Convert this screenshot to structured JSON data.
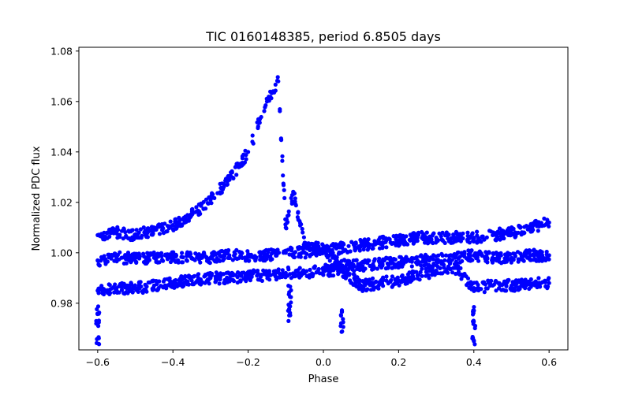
{
  "chart_data": {
    "type": "scatter",
    "title": "TIC 0160148385, period 6.8505 days",
    "xlabel": "Phase",
    "ylabel": "Normalized PDC flux",
    "xlim": [
      -0.65,
      0.65
    ],
    "ylim": [
      0.9615,
      1.0815
    ],
    "xticks": [
      -0.6,
      -0.4,
      -0.2,
      0.0,
      0.2,
      0.4,
      0.6
    ],
    "xtick_labels": [
      "−0.6",
      "−0.4",
      "−0.2",
      "0.0",
      "0.2",
      "0.4",
      "0.6"
    ],
    "yticks": [
      0.98,
      1.0,
      1.02,
      1.04,
      1.06,
      1.08
    ],
    "ytick_labels": [
      "0.98",
      "1.00",
      "1.02",
      "1.04",
      "1.06",
      "1.08"
    ],
    "grid": false,
    "marker_color": "#0000ff",
    "series": [
      {
        "name": "upper-band",
        "description": "bright branch rising to flare peak then dropping",
        "x": [
          -0.6,
          -0.55,
          -0.5,
          -0.45,
          -0.4,
          -0.35,
          -0.3,
          -0.25,
          -0.2,
          -0.15,
          -0.12,
          -0.1,
          -0.08,
          -0.05,
          0.0,
          0.05,
          0.1,
          0.15,
          0.2,
          0.25,
          0.3,
          0.35,
          0.4,
          0.45,
          0.5,
          0.55,
          0.6
        ],
        "y": [
          1.007,
          1.008,
          1.007,
          1.009,
          1.011,
          1.015,
          1.021,
          1.029,
          1.04,
          1.06,
          1.068,
          1.01,
          1.024,
          1.004,
          1.001,
          1.002,
          1.003,
          1.004,
          1.005,
          1.006,
          1.006,
          1.006,
          1.006,
          1.007,
          1.008,
          1.01,
          1.012
        ]
      },
      {
        "name": "middle-band",
        "x": [
          -0.6,
          -0.55,
          -0.5,
          -0.45,
          -0.4,
          -0.35,
          -0.3,
          -0.25,
          -0.2,
          -0.15,
          -0.1,
          -0.05,
          0.0,
          0.05,
          0.1,
          0.15,
          0.2,
          0.25,
          0.3,
          0.35,
          0.4,
          0.45,
          0.5,
          0.55,
          0.6
        ],
        "y": [
          0.997,
          0.998,
          0.998,
          0.998,
          0.998,
          0.998,
          0.998,
          0.999,
          0.999,
          0.999,
          1.0,
          1.0,
          1.001,
          0.995,
          0.995,
          0.996,
          0.996,
          0.997,
          0.997,
          0.998,
          0.999,
          0.998,
          0.998,
          0.999,
          0.999
        ]
      },
      {
        "name": "lower-band",
        "x": [
          -0.6,
          -0.55,
          -0.5,
          -0.45,
          -0.4,
          -0.35,
          -0.3,
          -0.25,
          -0.2,
          -0.15,
          -0.1,
          -0.05,
          0.0,
          0.05,
          0.1,
          0.15,
          0.2,
          0.25,
          0.3,
          0.35,
          0.4,
          0.45,
          0.5,
          0.55,
          0.6
        ],
        "y": [
          0.985,
          0.986,
          0.986,
          0.987,
          0.988,
          0.989,
          0.99,
          0.99,
          0.991,
          0.991,
          0.992,
          0.992,
          0.993,
          0.993,
          0.987,
          0.988,
          0.989,
          0.991,
          0.993,
          0.994,
          0.986,
          0.987,
          0.987,
          0.988,
          0.988
        ]
      },
      {
        "name": "dips",
        "x": [
          -0.6,
          -0.6,
          -0.6,
          -0.09,
          -0.09,
          -0.09,
          0.4,
          0.4,
          0.4,
          0.05,
          0.05
        ],
        "y": [
          0.966,
          0.972,
          0.978,
          0.975,
          0.98,
          0.985,
          0.966,
          0.972,
          0.978,
          0.971,
          0.975
        ]
      }
    ]
  }
}
